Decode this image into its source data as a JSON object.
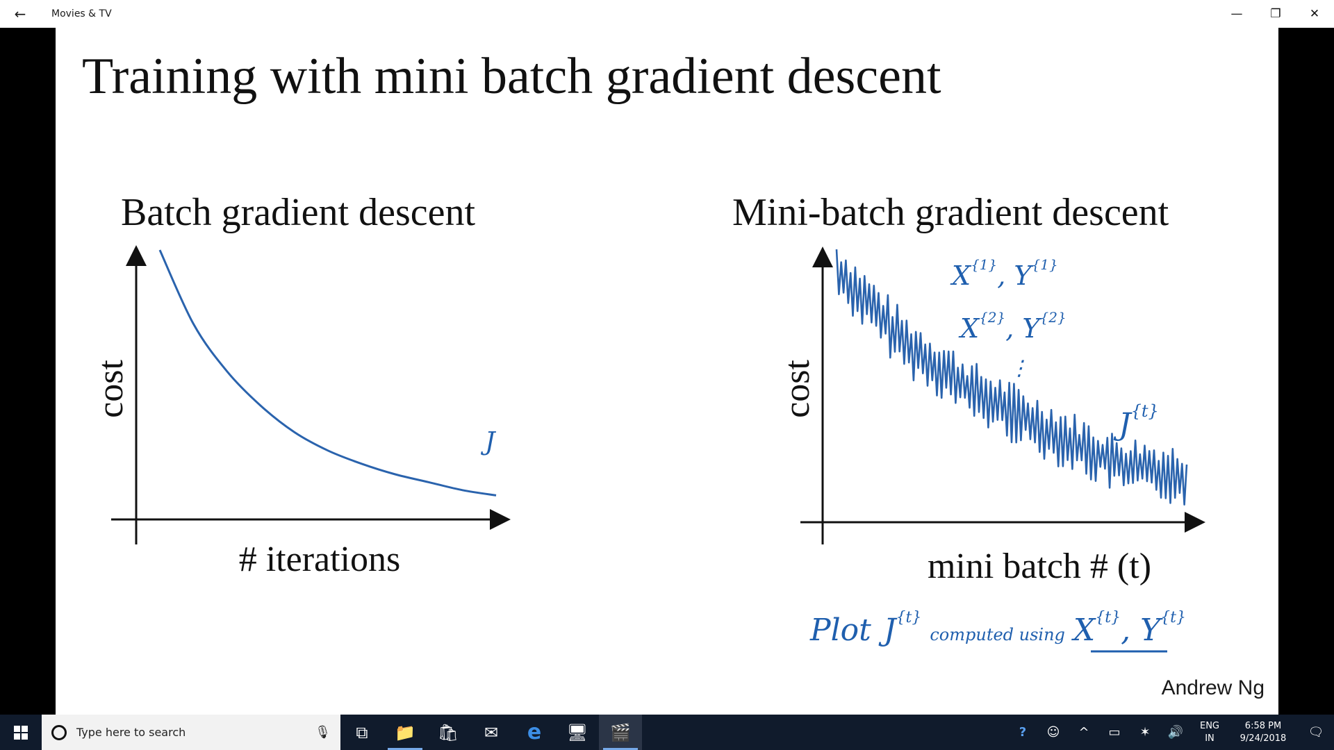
{
  "window": {
    "back_glyph": "←",
    "title": "Movies & TV",
    "minimize_glyph": "—",
    "restore_glyph": "❐",
    "close_glyph": "✕"
  },
  "slide": {
    "title": "Training with mini batch gradient descent",
    "author": "Andrew Ng",
    "left_chart": {
      "title": "Batch gradient descent",
      "ylabel": "cost",
      "xlabel": "# iterations",
      "curve_note": "J"
    },
    "right_chart": {
      "title": "Mini-batch gradient descent",
      "ylabel": "cost",
      "xlabel": "mini batch # (t)",
      "curve_note": "J",
      "curve_note_sup": "{t}",
      "batch_note_1": "X",
      "batch_note_1_sup": "{1}",
      "batch_note_1b": ", Y",
      "batch_note_1b_sup": "{1}",
      "batch_note_2": "X",
      "batch_note_2_sup": "{2}",
      "batch_note_2b": ", Y",
      "batch_note_2b_sup": "{2}",
      "dots": "⋮"
    },
    "handwritten": {
      "plot": "Plot",
      "j": "J",
      "j_sup": "{t}",
      "computed": "computed using",
      "x": "X",
      "x_sup": "{t}",
      "comma_y": ", Y",
      "y_sup": "{t}"
    },
    "ink_color": "#1f5fae"
  },
  "chart_data": [
    {
      "type": "line",
      "title": "Batch gradient descent",
      "xlabel": "# iterations",
      "ylabel": "cost",
      "series": [
        {
          "name": "J",
          "x": [
            0,
            0.1,
            0.2,
            0.3,
            0.4,
            0.5,
            0.6,
            0.7,
            0.8,
            0.9,
            1.0
          ],
          "values": [
            1.0,
            0.72,
            0.54,
            0.41,
            0.31,
            0.24,
            0.19,
            0.15,
            0.12,
            0.09,
            0.07
          ]
        }
      ]
    },
    {
      "type": "line",
      "title": "Mini-batch gradient descent",
      "xlabel": "mini batch # (t)",
      "ylabel": "cost",
      "series": [
        {
          "name": "J{t}",
          "trend_x": [
            0,
            0.2,
            0.4,
            0.6,
            0.8,
            1.0
          ],
          "trend_values": [
            0.95,
            0.66,
            0.47,
            0.33,
            0.2,
            0.15
          ],
          "noise_amplitude": 0.08
        }
      ]
    }
  ],
  "taskbar": {
    "search_placeholder": "Type here to search",
    "mic_glyph": "🎙",
    "task_view_glyph": "⧉",
    "file_explorer_glyph": "📁",
    "store_glyph": "🛍",
    "mail_glyph": "✉",
    "edge_glyph": "e",
    "remote_glyph": "🖥",
    "movies_glyph": "🎬",
    "help_glyph": "?",
    "people_glyph": "☺",
    "chevron_glyph": "^",
    "battery_glyph": "▭",
    "network_glyph": "✶",
    "volume_glyph": "🔊",
    "lang_top": "ENG",
    "lang_bottom": "IN",
    "time": "6:58 PM",
    "date": "9/24/2018",
    "notification_glyph": "🗨"
  }
}
